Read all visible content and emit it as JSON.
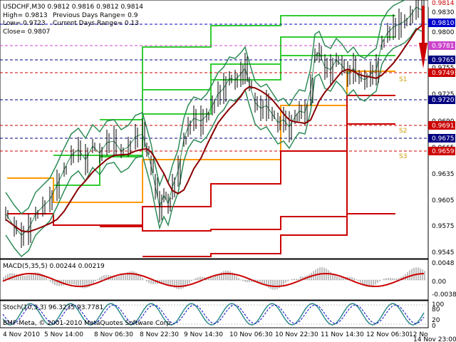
{
  "header": {
    "symbol_line": "USDCHF,M30  0.9812 0.9816 0.9812 0.9814",
    "high": "High= 0.9813",
    "prev_range": "Previous Days Range= 0.9",
    "low": "Low= 0.9723",
    "curr_range": "Current Days Range= 0.13",
    "close": "Close= 0.9807"
  },
  "price_axis": {
    "ticks": [
      "0.9830",
      "0.9800",
      "0.9755",
      "0.9725",
      "0.9690",
      "0.9665",
      "0.9635",
      "0.9605",
      "0.9575",
      "0.9545"
    ],
    "tags": [
      {
        "text": "0.9814",
        "bg": "#ffffff",
        "fg": "#cc0000"
      },
      {
        "text": "0.9810",
        "bg": "#0000cc",
        "fg": "#ffffff"
      },
      {
        "text": "0.9781",
        "bg": "#cc44cc",
        "fg": "#ffffff"
      },
      {
        "text": "0.9765",
        "bg": "#000080",
        "fg": "#ffffff"
      },
      {
        "text": "0.9749",
        "bg": "#cc0000",
        "fg": "#ffffff"
      },
      {
        "text": "0.9720",
        "bg": "#000080",
        "fg": "#ffffff"
      },
      {
        "text": "0.9691",
        "bg": "#cc0000",
        "fg": "#ffffff"
      },
      {
        "text": "0.9675",
        "bg": "#000080",
        "fg": "#ffffff"
      },
      {
        "text": "0.9659",
        "bg": "#cc0000",
        "fg": "#ffffff"
      }
    ]
  },
  "level_labels": [
    "S1",
    "S2",
    "S3"
  ],
  "macd": {
    "label": "MACD(5,35,5) 0.00244 0.00219",
    "ticks": [
      "0.0048",
      "0.00",
      "-0.00383"
    ]
  },
  "stoch": {
    "label": "Stoch(10,3,3) 96.3235 93.7781",
    "ticks": [
      "100",
      "80",
      "20",
      "0"
    ]
  },
  "watermark": "BMF-Meta, © 2001-2010 MetaQuotes Software Corp.",
  "time_axis": [
    "4 Nov 2010",
    "5 Nov 14:00",
    "8 Nov 06:30",
    "8 Nov 22:30",
    "9 Nov 14:30",
    "10 Nov 06:30",
    "10 Nov 22:30",
    "11 Nov 14:30",
    "12 Nov 06:30",
    "12 Nov 22:30",
    "14 Nov 23:00"
  ],
  "colors": {
    "bollinger": "#2e8b57",
    "ma": "#8b0000",
    "support": "#cc0000",
    "resistance": "#33cc33",
    "pivot": "#ff9900",
    "macd_hist": "#c0c0c0",
    "macd_signal": "#cc0000",
    "stoch_main": "#2e8b8b",
    "stoch_signal": "#0000cc"
  }
}
